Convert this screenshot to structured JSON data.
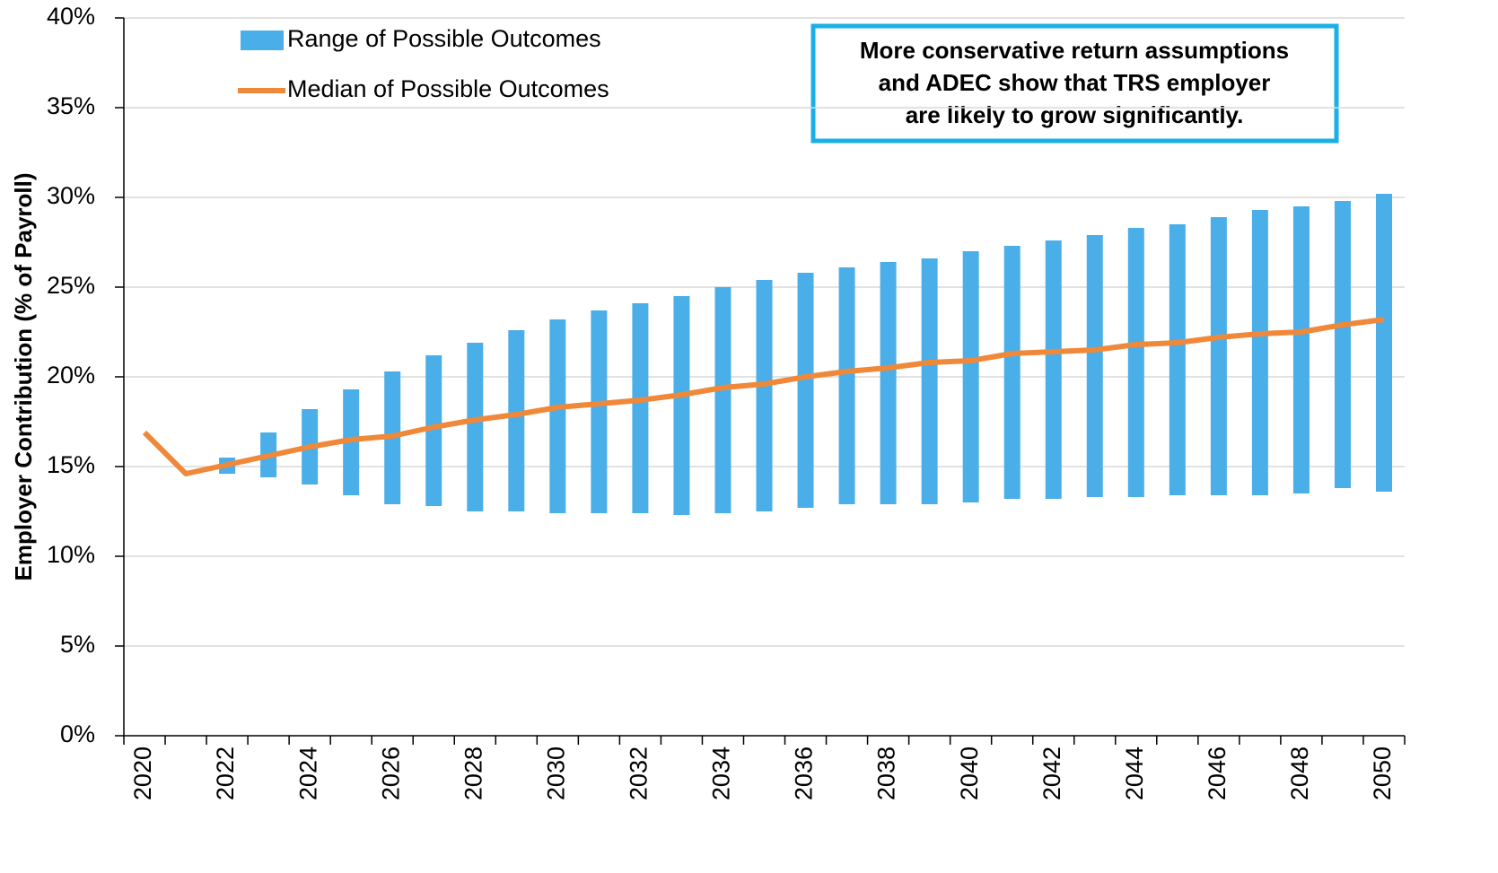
{
  "chart_data": {
    "type": "combo",
    "y_label": "Employer Contribution (% of Payroll)",
    "annotation": [
      "More conservative return assumptions",
      "and ADEC show that TRS employer",
      "are likely to grow significantly."
    ],
    "categories": [
      "2020",
      null,
      "2022",
      null,
      "2024",
      null,
      "2026",
      null,
      "2028",
      null,
      "2030",
      null,
      "2032",
      null,
      "2034",
      null,
      "2036",
      null,
      "2038",
      null,
      "2040",
      null,
      "2042",
      null,
      "2044",
      null,
      "2046",
      null,
      "2048",
      null,
      "2050"
    ],
    "series": [
      {
        "name": "Range of Possible Outcomes",
        "type": "range",
        "color": "#4aaee8",
        "low": [
          null,
          null,
          14.6,
          14.4,
          14.0,
          13.4,
          12.9,
          12.8,
          12.5,
          12.5,
          12.4,
          12.4,
          12.4,
          12.3,
          12.4,
          12.5,
          12.7,
          12.9,
          12.9,
          12.9,
          13.0,
          13.2,
          13.2,
          13.3,
          13.3,
          13.4,
          13.4,
          13.4,
          13.5,
          13.8,
          13.6
        ],
        "high": [
          null,
          null,
          15.5,
          16.9,
          18.2,
          19.3,
          20.3,
          21.2,
          21.9,
          22.6,
          23.2,
          23.7,
          24.1,
          24.5,
          25.0,
          25.4,
          25.8,
          26.1,
          26.4,
          26.6,
          27.0,
          27.3,
          27.6,
          27.9,
          28.3,
          28.5,
          28.9,
          29.3,
          29.5,
          29.8,
          30.2
        ]
      },
      {
        "name": "Median of Possible Outcomes",
        "type": "line",
        "color": "#f0883a",
        "values": [
          16.9,
          14.6,
          15.1,
          15.6,
          16.1,
          16.5,
          16.7,
          17.2,
          17.6,
          17.9,
          18.3,
          18.5,
          18.7,
          19.0,
          19.4,
          19.6,
          20.0,
          20.3,
          20.5,
          20.8,
          20.9,
          21.3,
          21.4,
          21.5,
          21.8,
          21.9,
          22.2,
          22.4,
          22.5,
          22.9,
          23.2
        ]
      }
    ],
    "ylim": [
      0,
      40
    ],
    "yticks": [
      {
        "value": 0,
        "label": "0%"
      },
      {
        "value": 5,
        "label": "5%"
      },
      {
        "value": 10,
        "label": "10%"
      },
      {
        "value": 15,
        "label": "15%"
      },
      {
        "value": 20,
        "label": "20%"
      },
      {
        "value": 25,
        "label": "25%"
      },
      {
        "value": 30,
        "label": "30%"
      },
      {
        "value": 35,
        "label": "35%"
      },
      {
        "value": 40,
        "label": "40%"
      }
    ],
    "grid": true
  }
}
